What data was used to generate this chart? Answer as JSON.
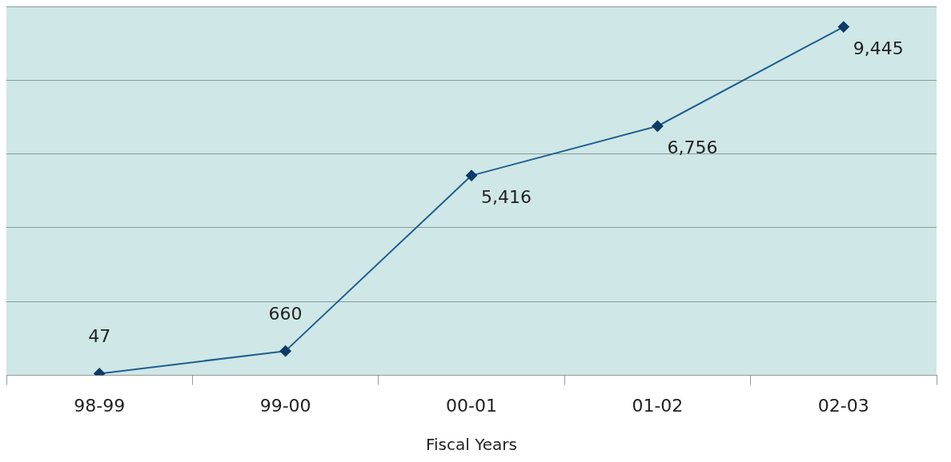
{
  "chart_data": {
    "type": "line",
    "xlabel": "Fiscal Years",
    "categories": [
      "98-99",
      "99-00",
      "00-01",
      "01-02",
      "02-03"
    ],
    "values": [
      47,
      660,
      5416,
      6756,
      9445
    ],
    "value_labels": [
      "47",
      "660",
      "5,416",
      "6,756",
      "9,445"
    ],
    "color": "#1f5f8f",
    "marker": "diamond",
    "grid": "y",
    "ylim": [
      0,
      10000
    ],
    "yticks": [
      {
        "value": 0,
        "label": null
      },
      {
        "value": 2000,
        "label": null
      },
      {
        "value": 4000,
        "label": null
      },
      {
        "value": 6000,
        "label": null
      },
      {
        "value": 8000,
        "label": null
      },
      {
        "value": 10000,
        "label": null
      }
    ],
    "tick_labels": "x"
  }
}
